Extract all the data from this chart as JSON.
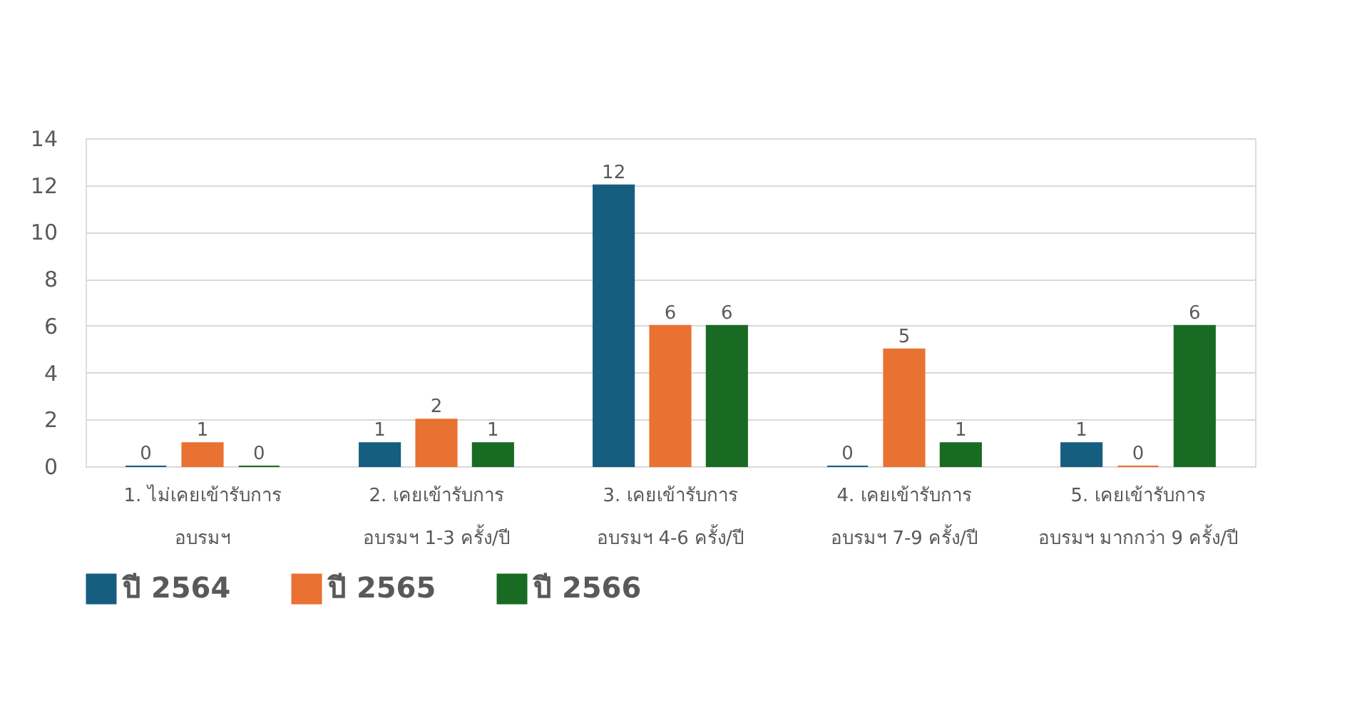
{
  "chart_data": {
    "type": "bar",
    "categories": [
      "1. ไม่เคยเข้ารับการ\nอบรมฯ",
      "2. เคยเข้ารับการ\nอบรมฯ 1-3 ครั้ง/ปี",
      "3. เคยเข้ารับการ\nอบรมฯ 4-6 ครั้ง/ปี",
      "4. เคยเข้ารับการ\nอบรมฯ 7-9 ครั้ง/ปี",
      "5. เคยเข้ารับการ\nอบรมฯ มากกว่า 9 ครั้ง/ปี"
    ],
    "series": [
      {
        "name": "ปี 2564",
        "color": "#165e80",
        "values": [
          0,
          1,
          12,
          0,
          1
        ]
      },
      {
        "name": "ปี 2565",
        "color": "#e97132",
        "values": [
          1,
          2,
          6,
          5,
          0
        ]
      },
      {
        "name": "ปี 2566",
        "color": "#196b24",
        "values": [
          0,
          1,
          6,
          1,
          6
        ]
      }
    ],
    "ylim": [
      0,
      14
    ],
    "yticks": [
      0,
      2,
      4,
      6,
      8,
      10,
      12,
      14
    ],
    "grid": "y",
    "legend": "bottom",
    "data_labels": true
  }
}
